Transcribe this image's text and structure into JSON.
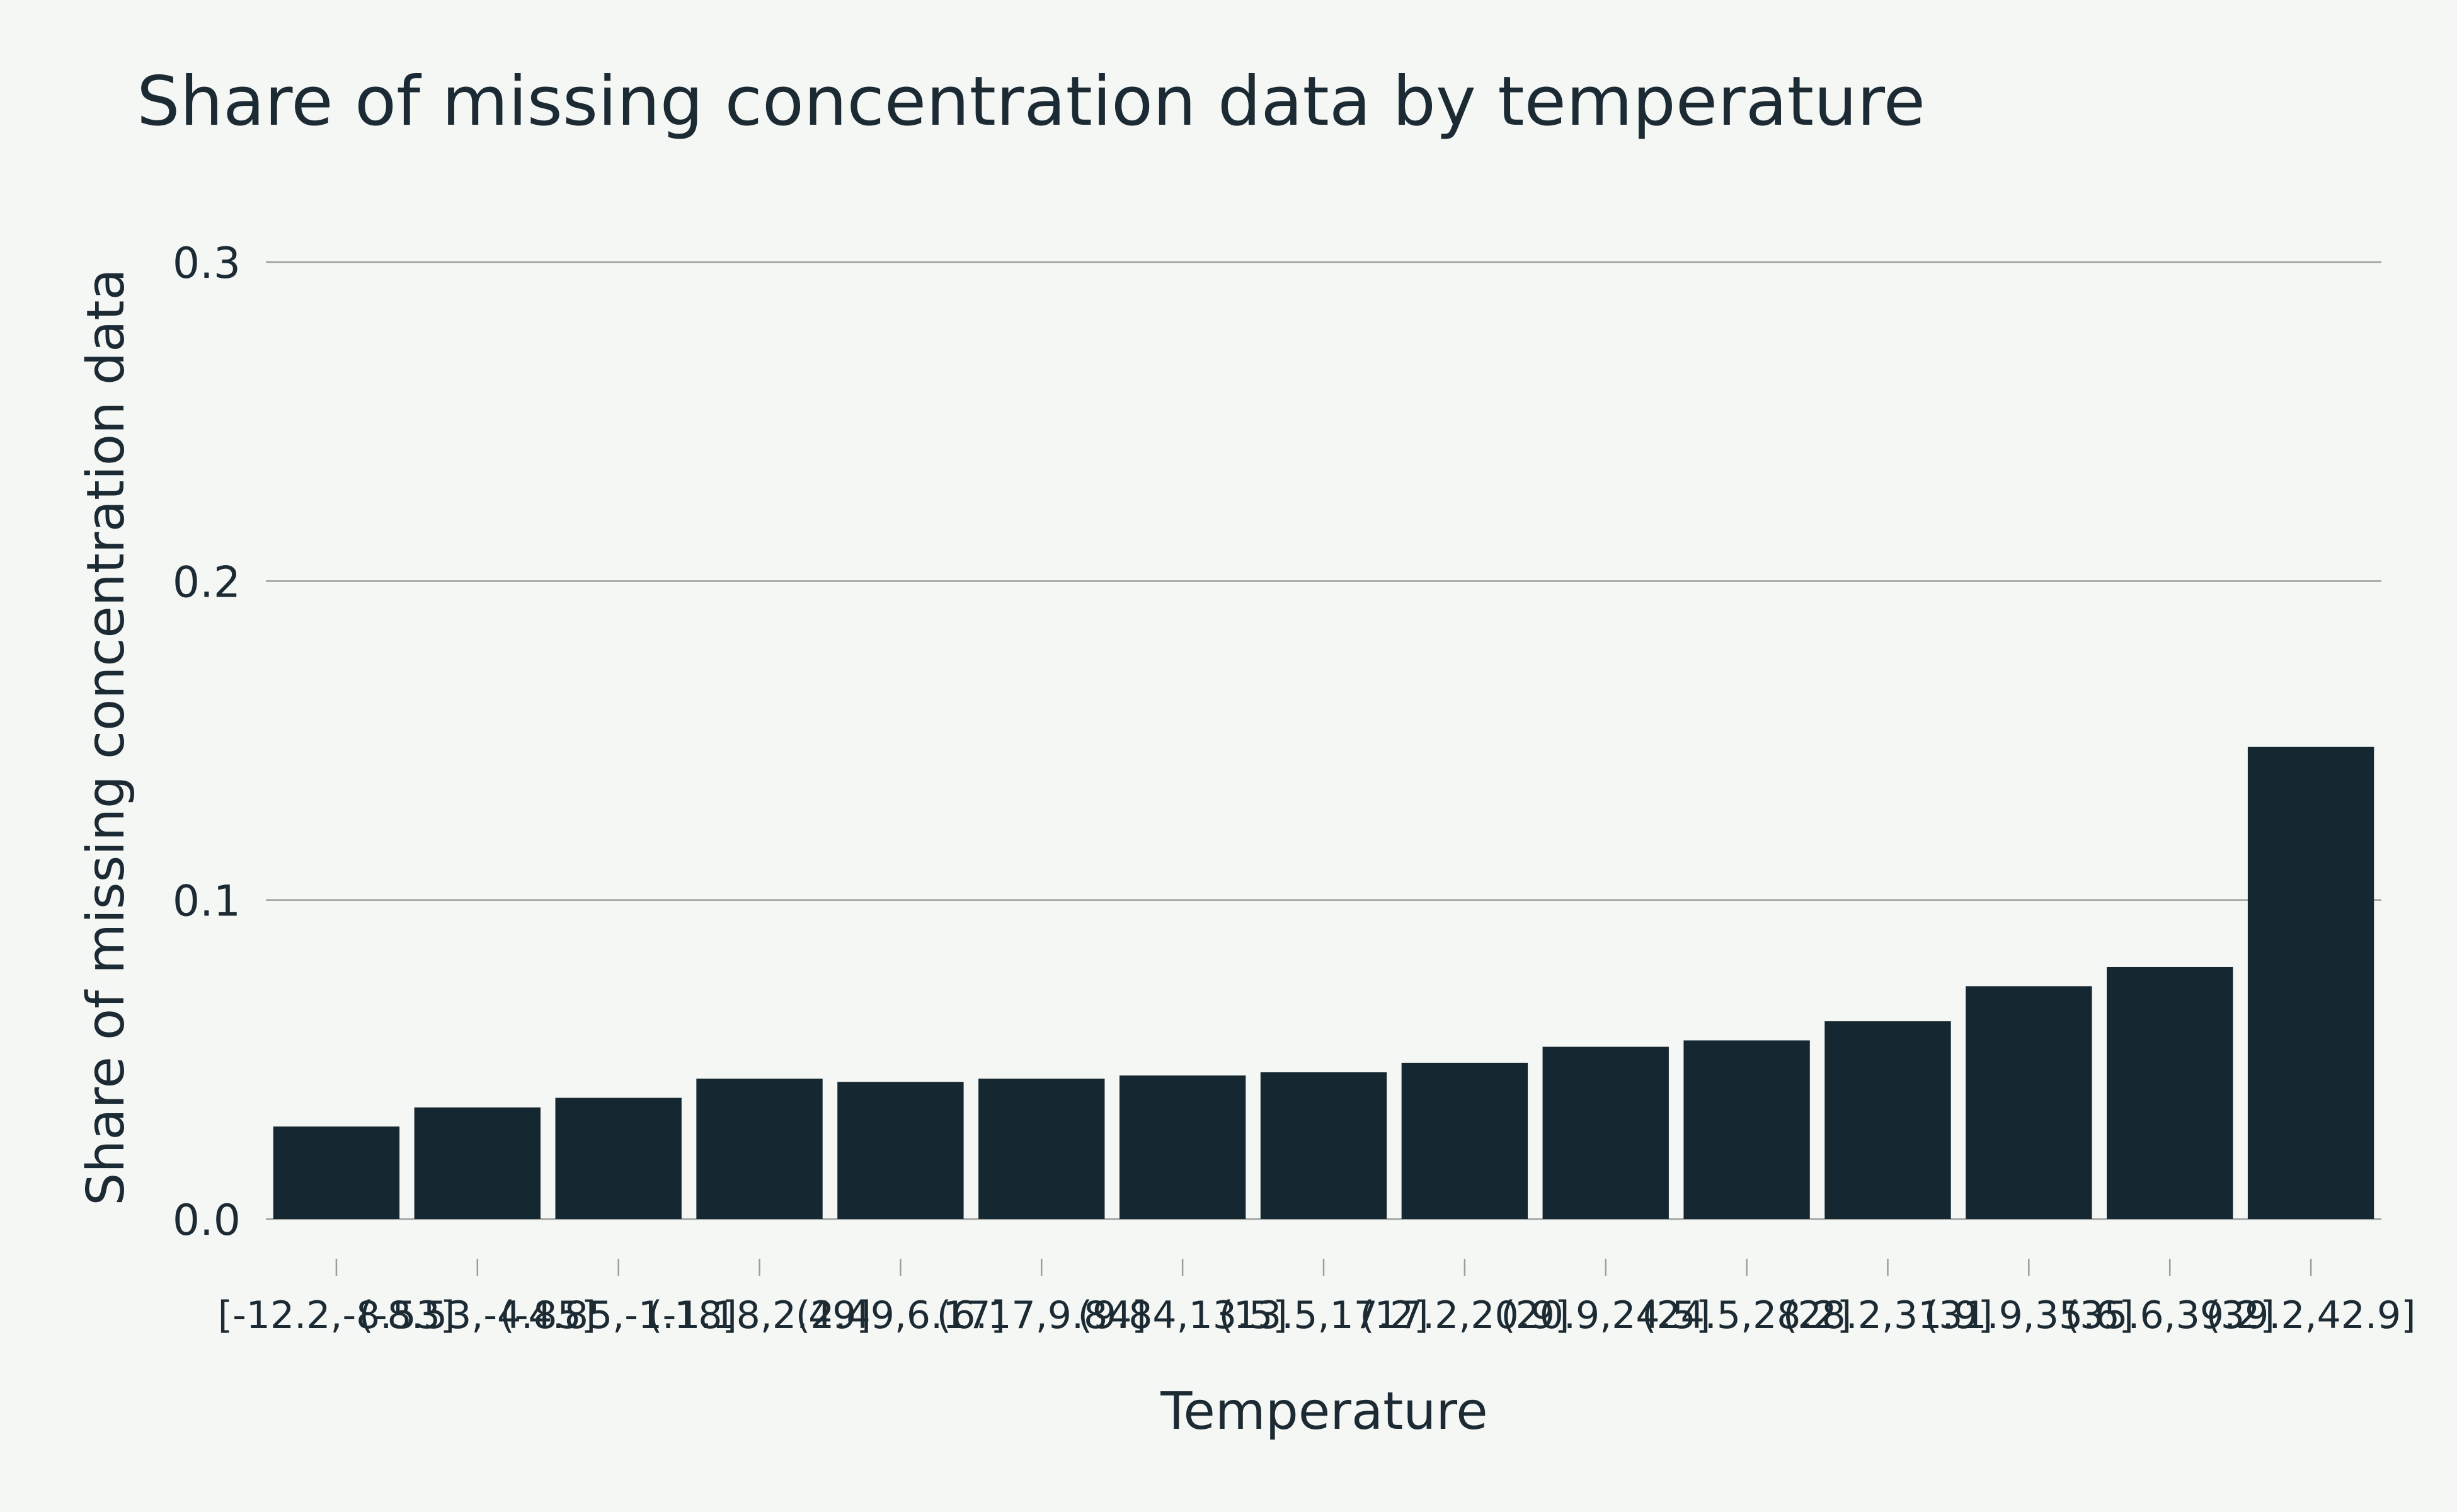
{
  "chart_data": {
    "type": "bar",
    "title": "Share of missing concentration data by temperature",
    "xlabel": "Temperature",
    "ylabel": "Share of missing concentration data",
    "ylim": [
      0,
      0.3
    ],
    "yticks": [
      0.0,
      0.1,
      0.2,
      0.3
    ],
    "ytick_labels": [
      "0.0",
      "0.1",
      "0.2",
      "0.3"
    ],
    "grid": "horizontal",
    "categories": [
      "[-12.2,-8.53]",
      "(-8.53,-4.85]",
      "(-4.85,-1.18]",
      "(-1.18,2.49]",
      "(2.49,6.17]",
      "(6.17,9.84]",
      "(9.84,13.5]",
      "(13.5,17.2]",
      "(17.2,20.9]",
      "(20.9,24.5]",
      "(24.5,28.2]",
      "(28.2,31.9]",
      "(31.9,35.6]",
      "(35.6,39.2]",
      "(39.2,42.9]"
    ],
    "values": [
      0.029,
      0.035,
      0.038,
      0.044,
      0.043,
      0.044,
      0.045,
      0.046,
      0.049,
      0.054,
      0.056,
      0.062,
      0.073,
      0.079,
      0.148
    ],
    "colors": {
      "bar": "#152730",
      "background": "#f5f7f4",
      "grid": "#9a9f9d",
      "text": "#1c2a33"
    }
  }
}
